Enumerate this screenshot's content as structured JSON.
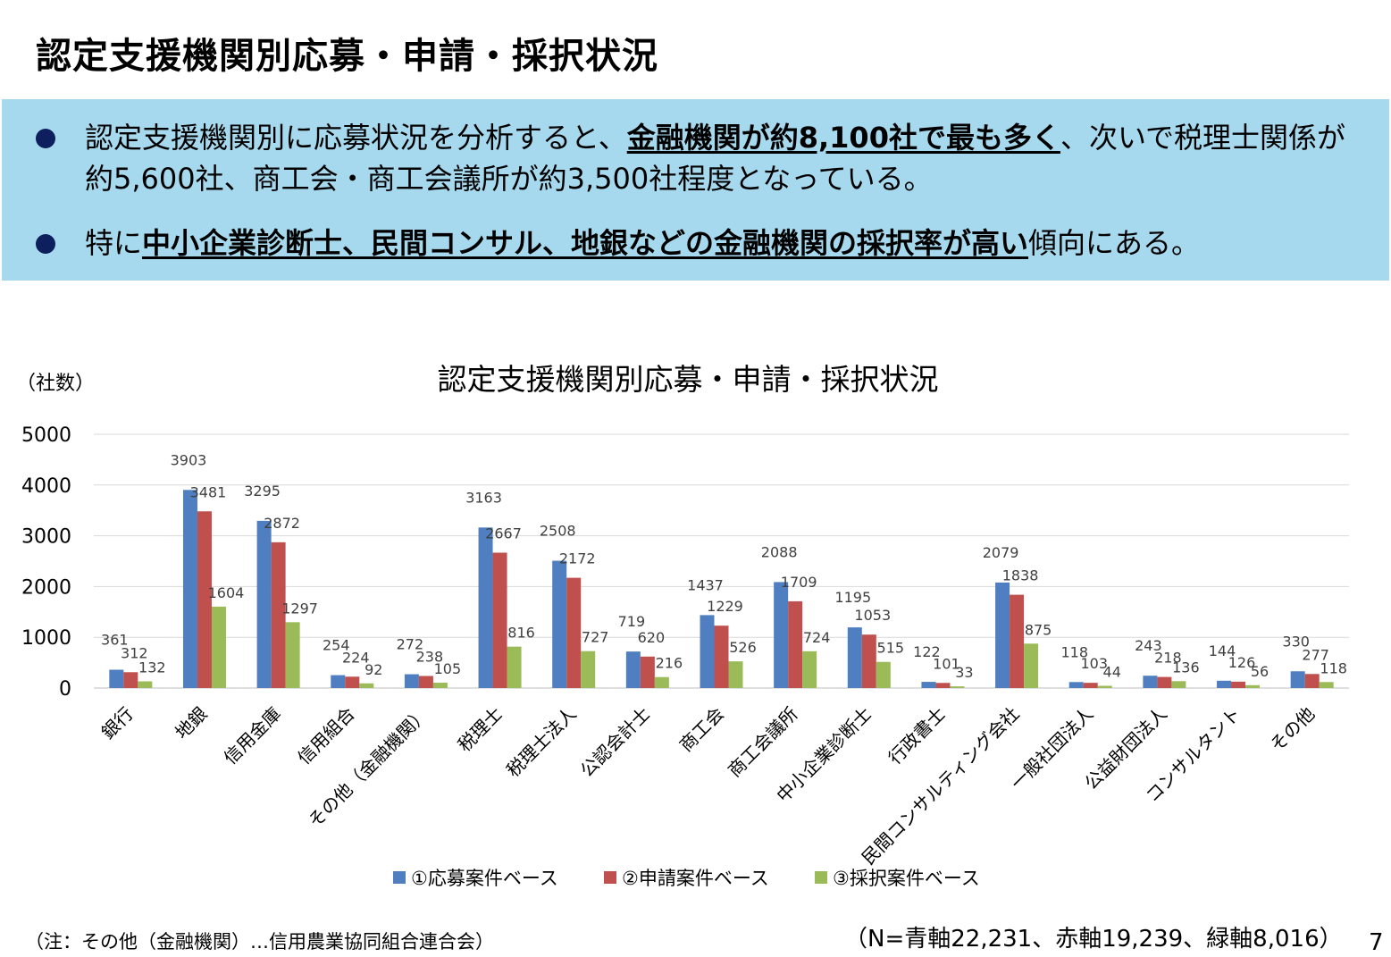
{
  "slide": {
    "title": "認定支援機関別応募・申請・採択状況",
    "page_number": "7"
  },
  "summary": {
    "bullet1": {
      "pre": "認定支援機関別に応募状況を分析すると、",
      "emph": "金融機関が約8,100社で最も多く",
      "post": "、次いで税理士関係が約5,600社、商工会・商工会議所が約3,500社程度となっている。"
    },
    "bullet2": {
      "pre": "特に",
      "emph": "中小企業診断士、民間コンサル、地銀などの金融機関の採択率が高い",
      "post": "傾向にある。"
    }
  },
  "colors": {
    "summary_bg": "#a7d9ee",
    "bullet": "#0d1f5c",
    "series": [
      "#4f7fc0",
      "#c0504d",
      "#9bbb59"
    ]
  },
  "chart_data": {
    "type": "bar",
    "title": "認定支援機関別応募・申請・採択状況",
    "ylabel": "（社数）",
    "ylim": [
      0,
      5000
    ],
    "yticks": [
      0,
      1000,
      2000,
      3000,
      4000,
      5000
    ],
    "grid": true,
    "legend_position": "bottom",
    "categories": [
      "銀行",
      "地銀",
      "信用金庫",
      "信用組合",
      "その他（金融機関）",
      "税理士",
      "税理士法人",
      "公認会計士",
      "商工会",
      "商工会議所",
      "中小企業診断士",
      "行政書士",
      "民間コンサルティング会社",
      "一般社団法人",
      "公益財団法人",
      "コンサルタント",
      "その他"
    ],
    "series": [
      {
        "name": "①応募案件ベース",
        "values": [
          361,
          3903,
          3295,
          254,
          272,
          3163,
          2508,
          719,
          1437,
          2088,
          1195,
          122,
          2079,
          118,
          243,
          144,
          330
        ]
      },
      {
        "name": "②申請案件ベース",
        "values": [
          312,
          3481,
          2872,
          224,
          238,
          2667,
          2172,
          620,
          1229,
          1709,
          1053,
          101,
          1838,
          103,
          218,
          126,
          277
        ]
      },
      {
        "name": "③採択案件ベース",
        "values": [
          132,
          1604,
          1297,
          92,
          105,
          816,
          727,
          216,
          526,
          724,
          515,
          33,
          875,
          44,
          136,
          56,
          118
        ]
      }
    ]
  },
  "footer": {
    "note": "（注：その他（金融機関）…信用農業協同組合連合会）",
    "n_note": "（N=青軸22,231、赤軸19,239、緑軸8,016）"
  }
}
